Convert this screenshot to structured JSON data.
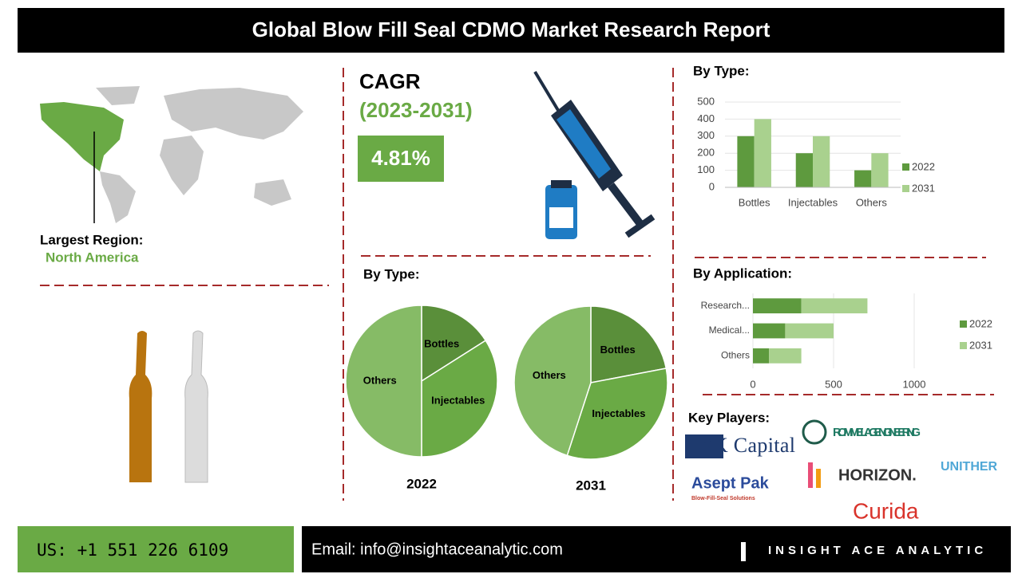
{
  "header": {
    "title": "Global Blow Fill Seal CDMO Market Research Report"
  },
  "cagr": {
    "label": "CAGR",
    "period": "(2023-2031)",
    "value": "4.81%"
  },
  "region": {
    "label": "Largest Region:",
    "name": "North America"
  },
  "pie_section": {
    "title": "By Type:"
  },
  "chart_data": [
    {
      "type": "bar",
      "title": "By Type:",
      "categories": [
        "Bottles",
        "Injectables",
        "Others"
      ],
      "series": [
        {
          "name": "2022",
          "color": "#5e9a3e",
          "values": [
            300,
            200,
            100
          ]
        },
        {
          "name": "2031",
          "color": "#a9d18e",
          "values": [
            400,
            300,
            200
          ]
        }
      ],
      "ylim": [
        0,
        500
      ],
      "yticks": [
        0,
        100,
        200,
        300,
        400,
        500
      ],
      "grid": true,
      "legend": "right"
    },
    {
      "type": "pie",
      "title": "2022",
      "categories": [
        "Bottles",
        "Injectables",
        "Others"
      ],
      "values": [
        16,
        34,
        50
      ],
      "colors": [
        "#5a8f3a",
        "#6aaa45",
        "#86bb66"
      ]
    },
    {
      "type": "pie",
      "title": "2031",
      "categories": [
        "Bottles",
        "Injectables",
        "Others"
      ],
      "values": [
        22,
        33,
        45
      ],
      "colors": [
        "#5a8f3a",
        "#6aaa45",
        "#86bb66"
      ]
    },
    {
      "type": "hbar",
      "title": "By Application:",
      "categories": [
        "Research...",
        "Medical...",
        "Others"
      ],
      "stacked": true,
      "series": [
        {
          "name": "2022",
          "color": "#5e9a3e",
          "values": [
            300,
            200,
            100
          ]
        },
        {
          "name": "2031",
          "color": "#a9d18e",
          "values": [
            410,
            300,
            200
          ]
        }
      ],
      "xlim": [
        0,
        1000
      ],
      "xticks": [
        0,
        500,
        1000
      ],
      "grid": true,
      "legend": "right"
    }
  ],
  "key_players": {
    "title": "Key Players:",
    "sk": "SK Capital",
    "rommelag": "ROMMELAG ENGINEERING",
    "unither": "UNITHER",
    "aseptpak": "Asept Pak",
    "aseptpak_tag": "Blow-Fill-Seal Solutions",
    "horizon": "HORIZON.",
    "curida": "Curida"
  },
  "footer": {
    "phone": "US: +1 551 226 6109",
    "email": "Email: info@insightaceanalytic.com",
    "brand": "INSIGHT ACE ANALYTIC"
  }
}
